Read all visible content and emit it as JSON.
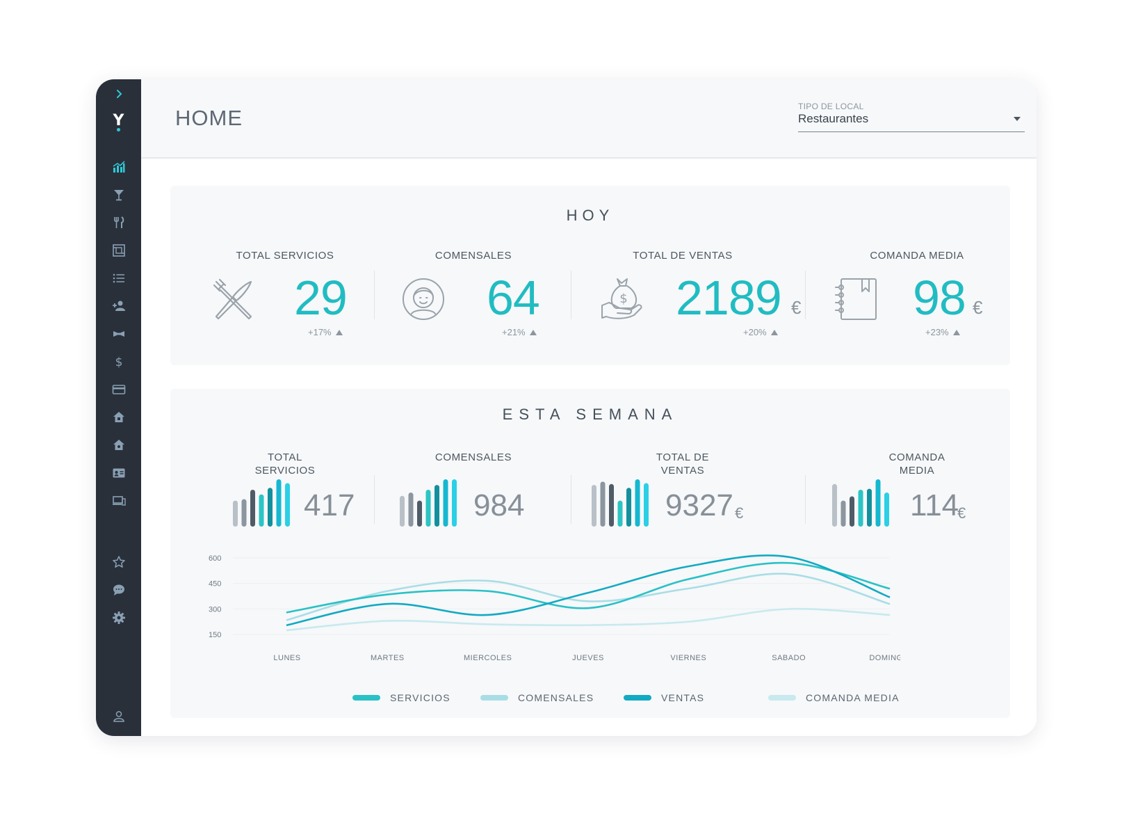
{
  "header": {
    "title": "HOME",
    "local_select": {
      "label": "TIPO DE LOCAL",
      "value": "Restaurantes"
    }
  },
  "sidebar": {
    "expand_icon": "chevron-right-icon",
    "logo": "Y",
    "items": [
      {
        "icon": "bar-chart-icon",
        "active": true
      },
      {
        "icon": "cocktail-glass-icon"
      },
      {
        "icon": "fork-knife-icon"
      },
      {
        "icon": "floor-plan-icon"
      },
      {
        "icon": "list-icon"
      },
      {
        "icon": "add-user-icon"
      },
      {
        "icon": "bow-tie-icon"
      },
      {
        "icon": "dollar-icon"
      },
      {
        "icon": "credit-card-icon"
      },
      {
        "icon": "house-icon"
      },
      {
        "icon": "house-alt-icon"
      },
      {
        "icon": "id-card-icon"
      },
      {
        "icon": "devices-icon"
      }
    ],
    "bottom_items": [
      {
        "icon": "star-icon"
      },
      {
        "icon": "chat-icon"
      },
      {
        "icon": "gear-icon"
      }
    ],
    "user_icon": "user-icon"
  },
  "today": {
    "title": "HOY",
    "kpis": [
      {
        "label": "TOTAL SERVICIOS",
        "value": "29",
        "unit": "",
        "change": "+17%",
        "icon": "crossed-utensils-icon"
      },
      {
        "label": "COMENSALES",
        "value": "64",
        "unit": "",
        "change": "+21%",
        "icon": "diner-face-icon"
      },
      {
        "label": "TOTAL DE VENTAS",
        "value": "2189",
        "unit": "€",
        "change": "+20%",
        "icon": "money-bag-hand-icon"
      },
      {
        "label": "COMANDA MEDIA",
        "value": "98",
        "unit": "€",
        "change": "+23%",
        "icon": "order-notebook-icon"
      }
    ]
  },
  "week": {
    "title": "ESTA SEMANA",
    "kpis": [
      {
        "label_line1": "TOTAL",
        "label_line2": "SERVICIOS",
        "value": "417",
        "unit": "",
        "bars": [
          0.55,
          0.58,
          0.78,
          0.68,
          0.82,
          1.0,
          0.92
        ]
      },
      {
        "label_line1": "COMENSALES",
        "label_line2": "",
        "value": "984",
        "unit": "",
        "bars": [
          0.65,
          0.72,
          0.55,
          0.78,
          0.88,
          1.0,
          1.0
        ]
      },
      {
        "label_line1": "TOTAL DE",
        "label_line2": "VENTAS",
        "value": "9327",
        "unit": "€",
        "bars": [
          0.88,
          0.95,
          0.9,
          0.55,
          0.82,
          1.0,
          0.92
        ]
      },
      {
        "label_line1": "COMANDA",
        "label_line2": "MEDIA",
        "value": "114",
        "unit": "€",
        "bars": [
          0.9,
          0.55,
          0.64,
          0.78,
          0.8,
          1.0,
          0.72
        ]
      }
    ],
    "bar_colors": [
      "#b9c0c7",
      "#8c96a0",
      "#4f5b67",
      "#2cc4c4",
      "#13909d",
      "#16b7d0",
      "#2bd0e6"
    ]
  },
  "chart_data": {
    "type": "line",
    "categories": [
      "LUNES",
      "MARTES",
      "MIERCOLES",
      "JUEVES",
      "VIERNES",
      "SABADO",
      "DOMINGO"
    ],
    "yticks": [
      150,
      300,
      450,
      600
    ],
    "ylim": [
      130,
      620
    ],
    "grid": true,
    "legend_position": "bottom",
    "series": [
      {
        "name": "SERVICIOS",
        "color": "#29c1c6",
        "values": [
          280,
          385,
          405,
          305,
          475,
          570,
          420
        ]
      },
      {
        "name": "COMENSALES",
        "color": "#a9dde6",
        "values": [
          235,
          405,
          465,
          345,
          420,
          505,
          330
        ]
      },
      {
        "name": "VENTAS",
        "color": "#12aac3",
        "values": [
          205,
          330,
          265,
          395,
          550,
          605,
          370
        ]
      },
      {
        "name": "COMANDA MEDIA",
        "color": "#c8e9ef",
        "values": [
          175,
          230,
          210,
          205,
          225,
          300,
          265
        ]
      }
    ]
  }
}
